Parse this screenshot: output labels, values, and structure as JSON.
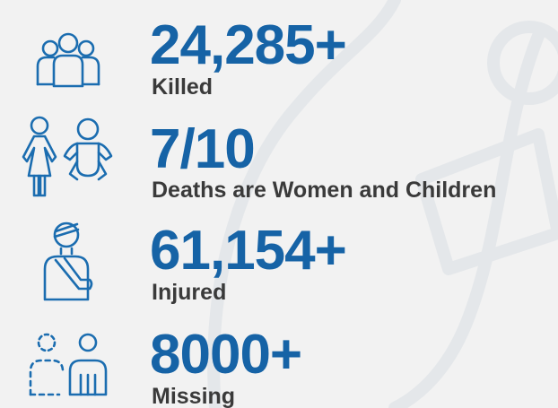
{
  "stats": [
    {
      "value": "24,285+",
      "label": "Killed"
    },
    {
      "value": "7/10",
      "label": "Deaths are Women and Children"
    },
    {
      "value": "61,154+",
      "label": "Injured"
    },
    {
      "value": "8000+",
      "label": "Missing"
    }
  ]
}
